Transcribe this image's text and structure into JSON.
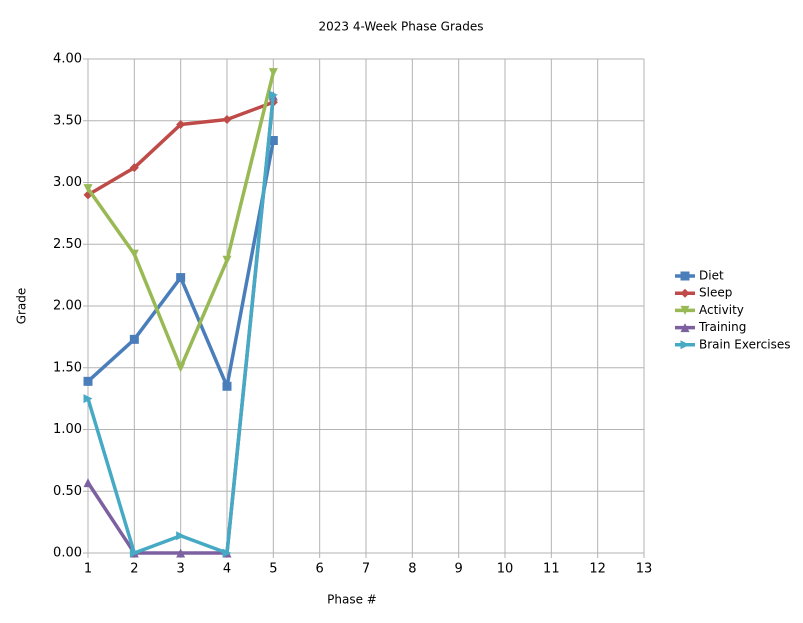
{
  "chart_data": {
    "type": "line",
    "title": "2023 4-Week Phase Grades",
    "x_label": "Phase #",
    "y_label": "Grade",
    "x": [
      1,
      2,
      3,
      4,
      5
    ],
    "series": [
      {
        "name": "Diet",
        "color": "#4a7ebb",
        "marker": "square",
        "values": [
          1.39,
          1.73,
          2.23,
          1.35,
          3.34
        ]
      },
      {
        "name": "Sleep",
        "color": "#be4b48",
        "marker": "diamond",
        "values": [
          2.9,
          3.12,
          3.47,
          3.51,
          3.65
        ]
      },
      {
        "name": "Activity",
        "color": "#98b954",
        "marker": "triangle-down",
        "values": [
          2.95,
          2.42,
          1.5,
          2.37,
          3.89
        ]
      },
      {
        "name": "Training",
        "color": "#7d60a0",
        "marker": "triangle-up",
        "values": [
          0.57,
          0,
          0,
          0,
          3.7
        ]
      },
      {
        "name": "Brain Exercises",
        "color": "#46aac5",
        "marker": "triangle-right",
        "values": [
          1.25,
          0,
          0.14,
          0,
          3.71
        ]
      }
    ],
    "xlim": [
      1,
      13
    ],
    "xticks": [
      1,
      2,
      3,
      4,
      5,
      6,
      7,
      8,
      9,
      10,
      11,
      12,
      13
    ],
    "ylim": [
      0,
      4
    ],
    "yticks": [
      {
        "value": 0,
        "label": "0.00"
      },
      {
        "value": 0.5,
        "label": "0.50"
      },
      {
        "value": 1,
        "label": "1.00"
      },
      {
        "value": 1.5,
        "label": "1.50"
      },
      {
        "value": 2,
        "label": "2.00"
      },
      {
        "value": 2.5,
        "label": "2.50"
      },
      {
        "value": 3,
        "label": "3.00"
      },
      {
        "value": 3.5,
        "label": "3.50"
      },
      {
        "value": 4,
        "label": "4.00"
      }
    ],
    "grid": true,
    "legend": "right"
  }
}
